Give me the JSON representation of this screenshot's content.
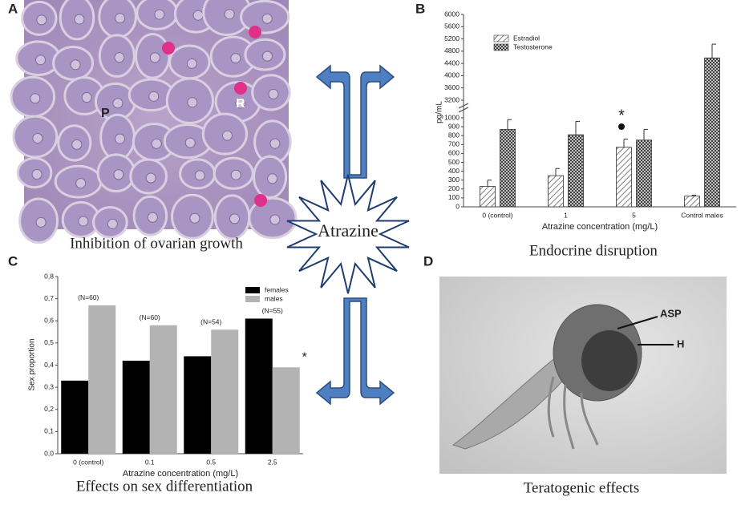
{
  "center": {
    "label": "Atrazine"
  },
  "panels": [
    {
      "letter": "A",
      "caption": "Inhibition of ovarian growth",
      "annotations": [
        "P",
        "R"
      ]
    },
    {
      "letter": "B",
      "caption": "Endocrine disruption"
    },
    {
      "letter": "C",
      "caption": "Effects on sex differentiation"
    },
    {
      "letter": "D",
      "caption": "Teratogenic effects",
      "annotations": [
        "ASP",
        "H"
      ]
    }
  ],
  "chart_data": [
    {
      "type": "bar",
      "x_label": "Atrazine concentration (mg/L)",
      "y_label": "pg/mL",
      "categories": [
        "0 (control)",
        "1",
        "5",
        "Control males"
      ],
      "series": [
        {
          "name": "Estradiol",
          "values": [
            230,
            350,
            670,
            120
          ],
          "errors": [
            70,
            80,
            90,
            10
          ]
        },
        {
          "name": "Testosterone",
          "values": [
            870,
            810,
            750,
            4580
          ],
          "errors": [
            110,
            150,
            120,
            450
          ]
        }
      ],
      "ylim": [
        0,
        6000
      ],
      "axis_break": [
        1000,
        3200
      ],
      "yticks": [
        0,
        100,
        200,
        300,
        400,
        500,
        600,
        700,
        800,
        900,
        1000,
        3200,
        3600,
        4000,
        4400,
        4800,
        5200,
        5600,
        6000
      ],
      "legend": "upper left",
      "annotations": [
        "*"
      ]
    },
    {
      "type": "bar",
      "x_label": "Atrazine concentration (mg/L)",
      "y_label": "Sex proportion",
      "categories": [
        "0 (control)",
        "0.1",
        "0.5",
        "2.5"
      ],
      "series": [
        {
          "name": "females",
          "color": "#000000",
          "values": [
            0.33,
            0.42,
            0.44,
            0.61
          ]
        },
        {
          "name": "males",
          "color": "#b3b3b3",
          "values": [
            0.67,
            0.58,
            0.56,
            0.39
          ]
        }
      ],
      "group_labels": [
        "(N=60)",
        "(N=60)",
        "(N=54)",
        "(N=55)"
      ],
      "ylim": [
        0,
        0.8
      ],
      "yticks": [
        {
          "value": 0,
          "label": "0,0"
        },
        {
          "value": 0.1,
          "label": "0,1"
        },
        {
          "value": 0.2,
          "label": "0,2"
        },
        {
          "value": 0.3,
          "label": "0,3"
        },
        {
          "value": 0.4,
          "label": "0,4"
        },
        {
          "value": 0.5,
          "label": "0,5"
        },
        {
          "value": 0.6,
          "label": "0,6"
        },
        {
          "value": 0.7,
          "label": "0,7"
        },
        {
          "value": 0.8,
          "label": "0,8"
        }
      ],
      "legend": "upper right",
      "annotations": [
        "*"
      ]
    }
  ]
}
